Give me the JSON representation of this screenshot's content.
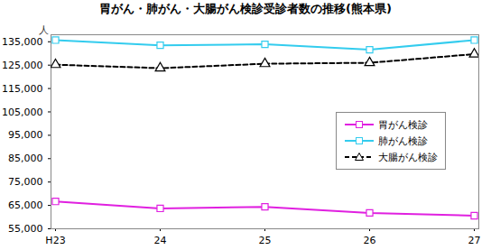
{
  "chart_data": {
    "type": "line",
    "title": "胃がん・肺がん・大腸がん検診受診者数の推移(熊本県)",
    "y_label": "人",
    "categories": [
      "H23",
      "24",
      "25",
      "26",
      "27"
    ],
    "series": [
      {
        "name": "胃がん検診",
        "color": "#e020e0",
        "marker": "square",
        "line_style": "solid",
        "values": [
          66700,
          63700,
          64400,
          61800,
          60600
        ]
      },
      {
        "name": "肺がん検診",
        "color": "#33ccee",
        "marker": "square",
        "line_style": "solid",
        "values": [
          135700,
          133500,
          133900,
          131600,
          135700
        ]
      },
      {
        "name": "大腸がん検診",
        "color": "#000000",
        "marker": "triangle",
        "line_style": "dashed",
        "values": [
          125200,
          123700,
          125600,
          126000,
          129700
        ]
      }
    ],
    "ylim": [
      55000,
      138000
    ],
    "yticks": [
      {
        "value": 55000,
        "label": "55,000"
      },
      {
        "value": 65000,
        "label": "65,000"
      },
      {
        "value": 75000,
        "label": "75,000"
      },
      {
        "value": 85000,
        "label": "85,000"
      },
      {
        "value": 95000,
        "label": "95,000"
      },
      {
        "value": 105000,
        "label": "105,000"
      },
      {
        "value": 115000,
        "label": "115,000"
      },
      {
        "value": 125000,
        "label": "125,000"
      },
      {
        "value": 135000,
        "label": "135,000"
      }
    ],
    "grid": false,
    "legend": "right"
  }
}
